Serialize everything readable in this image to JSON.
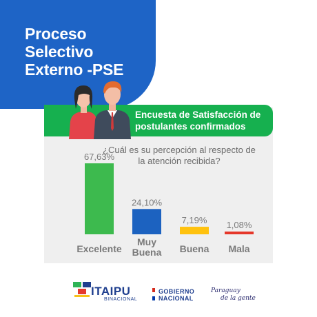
{
  "header": {
    "title_lines": [
      "Proceso",
      "Selectivo",
      "Externo -PSE"
    ]
  },
  "banner": {
    "lines": [
      "Encuesta de Satisfacción de",
      "postulantes confirmados"
    ]
  },
  "question": {
    "lines": [
      "¿Cuál es su percepción al respecto de",
      "la atención recibida?"
    ]
  },
  "chart_data": {
    "type": "bar",
    "title": "",
    "xlabel": "",
    "ylabel": "",
    "categories": [
      "Excelente",
      "Muy Buena",
      "Buena",
      "Mala"
    ],
    "values": [
      67.63,
      24.1,
      7.19,
      1.08
    ],
    "value_labels": [
      "67,63%",
      "24,10%",
      "7,19%",
      "1,08%"
    ],
    "ylim": [
      0,
      67.63
    ],
    "grid": false,
    "legend": "none",
    "colors": [
      "#3dba4e",
      "#1c62c0",
      "#ffc20e",
      "#e5372a"
    ]
  },
  "footer": {
    "itaipu": "ITAIPU",
    "itaipu_sub": "BINACIONAL",
    "gobierno_lines": [
      "GOBIERNO",
      "NACIONAL"
    ],
    "paraguay_lines": [
      "Paraguay",
      "de la gente"
    ]
  },
  "colors": {
    "header_blue": "#1e64c6",
    "banner_green": "#16b04f",
    "panel_gray": "#efefef",
    "label_gray": "#7a7a7a"
  }
}
